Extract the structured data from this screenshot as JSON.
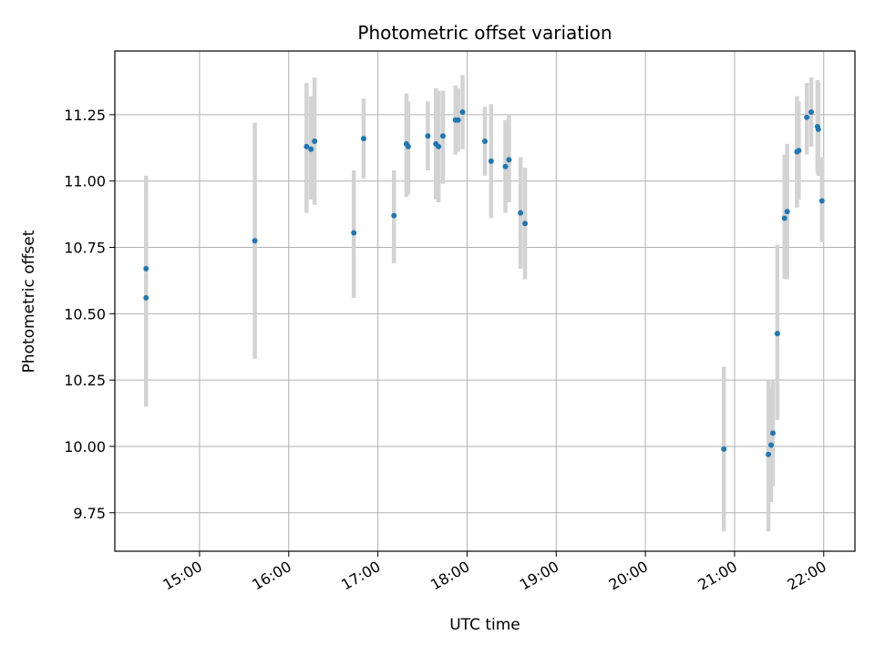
{
  "chart_data": {
    "type": "scatter",
    "title": "Photometric offset variation",
    "xlabel": "UTC time",
    "ylabel": "Photometric offset",
    "x_unit": "hours UTC",
    "xlim": [
      14.05,
      22.35
    ],
    "ylim": [
      9.605,
      11.49
    ],
    "x_ticks": [
      15,
      16,
      17,
      18,
      19,
      20,
      21,
      22
    ],
    "x_tick_labels": [
      "15:00",
      "16:00",
      "17:00",
      "18:00",
      "19:00",
      "20:00",
      "21:00",
      "22:00"
    ],
    "y_ticks": [
      9.75,
      10.0,
      10.25,
      10.5,
      10.75,
      11.0,
      11.25
    ],
    "y_tick_labels": [
      "9.75",
      "10.00",
      "10.25",
      "10.50",
      "10.75",
      "11.00",
      "11.25"
    ],
    "grid": true,
    "marker_color": "#1f77b4",
    "errorbar_color": "#d3d3d3",
    "points": [
      {
        "x": 14.4,
        "y": 10.67,
        "lo": 10.32,
        "hi": 11.02
      },
      {
        "x": 14.4,
        "y": 10.56,
        "lo": 10.15,
        "hi": 10.97
      },
      {
        "x": 15.62,
        "y": 10.775,
        "lo": 10.33,
        "hi": 11.22
      },
      {
        "x": 16.2,
        "y": 11.13,
        "lo": 10.88,
        "hi": 11.37
      },
      {
        "x": 16.25,
        "y": 11.12,
        "lo": 10.93,
        "hi": 11.32
      },
      {
        "x": 16.29,
        "y": 11.15,
        "lo": 10.91,
        "hi": 11.39
      },
      {
        "x": 16.73,
        "y": 10.805,
        "lo": 10.56,
        "hi": 11.04
      },
      {
        "x": 16.84,
        "y": 11.16,
        "lo": 11.01,
        "hi": 11.31
      },
      {
        "x": 17.18,
        "y": 10.87,
        "lo": 10.69,
        "hi": 11.04
      },
      {
        "x": 17.32,
        "y": 11.14,
        "lo": 10.94,
        "hi": 11.33
      },
      {
        "x": 17.34,
        "y": 11.13,
        "lo": 10.95,
        "hi": 11.3
      },
      {
        "x": 17.56,
        "y": 11.17,
        "lo": 11.04,
        "hi": 11.3
      },
      {
        "x": 17.65,
        "y": 11.14,
        "lo": 10.93,
        "hi": 11.35
      },
      {
        "x": 17.68,
        "y": 11.13,
        "lo": 10.92,
        "hi": 11.34
      },
      {
        "x": 17.73,
        "y": 11.17,
        "lo": 10.99,
        "hi": 11.34
      },
      {
        "x": 17.87,
        "y": 11.23,
        "lo": 11.1,
        "hi": 11.36
      },
      {
        "x": 17.9,
        "y": 11.23,
        "lo": 11.11,
        "hi": 11.35
      },
      {
        "x": 17.95,
        "y": 11.26,
        "lo": 11.12,
        "hi": 11.4
      },
      {
        "x": 18.2,
        "y": 11.15,
        "lo": 11.02,
        "hi": 11.28
      },
      {
        "x": 18.27,
        "y": 11.075,
        "lo": 10.86,
        "hi": 11.29
      },
      {
        "x": 18.43,
        "y": 11.055,
        "lo": 10.88,
        "hi": 11.23
      },
      {
        "x": 18.47,
        "y": 11.08,
        "lo": 10.92,
        "hi": 11.25
      },
      {
        "x": 18.6,
        "y": 10.88,
        "lo": 10.67,
        "hi": 11.09
      },
      {
        "x": 18.65,
        "y": 10.84,
        "lo": 10.63,
        "hi": 11.05
      },
      {
        "x": 20.88,
        "y": 9.99,
        "lo": 9.68,
        "hi": 10.3
      },
      {
        "x": 21.38,
        "y": 9.97,
        "lo": 9.68,
        "hi": 10.25
      },
      {
        "x": 21.41,
        "y": 10.005,
        "lo": 9.79,
        "hi": 10.22
      },
      {
        "x": 21.43,
        "y": 10.05,
        "lo": 9.85,
        "hi": 10.25
      },
      {
        "x": 21.48,
        "y": 10.425,
        "lo": 10.1,
        "hi": 10.76
      },
      {
        "x": 21.56,
        "y": 10.86,
        "lo": 10.63,
        "hi": 11.1
      },
      {
        "x": 21.59,
        "y": 10.885,
        "lo": 10.63,
        "hi": 11.14
      },
      {
        "x": 21.7,
        "y": 11.11,
        "lo": 10.9,
        "hi": 11.32
      },
      {
        "x": 21.72,
        "y": 11.115,
        "lo": 10.93,
        "hi": 11.3
      },
      {
        "x": 21.81,
        "y": 11.24,
        "lo": 11.1,
        "hi": 11.37
      },
      {
        "x": 21.86,
        "y": 11.26,
        "lo": 11.13,
        "hi": 11.39
      },
      {
        "x": 21.93,
        "y": 11.205,
        "lo": 11.03,
        "hi": 11.38
      },
      {
        "x": 21.94,
        "y": 11.195,
        "lo": 11.02,
        "hi": 11.37
      },
      {
        "x": 21.98,
        "y": 10.925,
        "lo": 10.77,
        "hi": 11.09
      }
    ]
  }
}
